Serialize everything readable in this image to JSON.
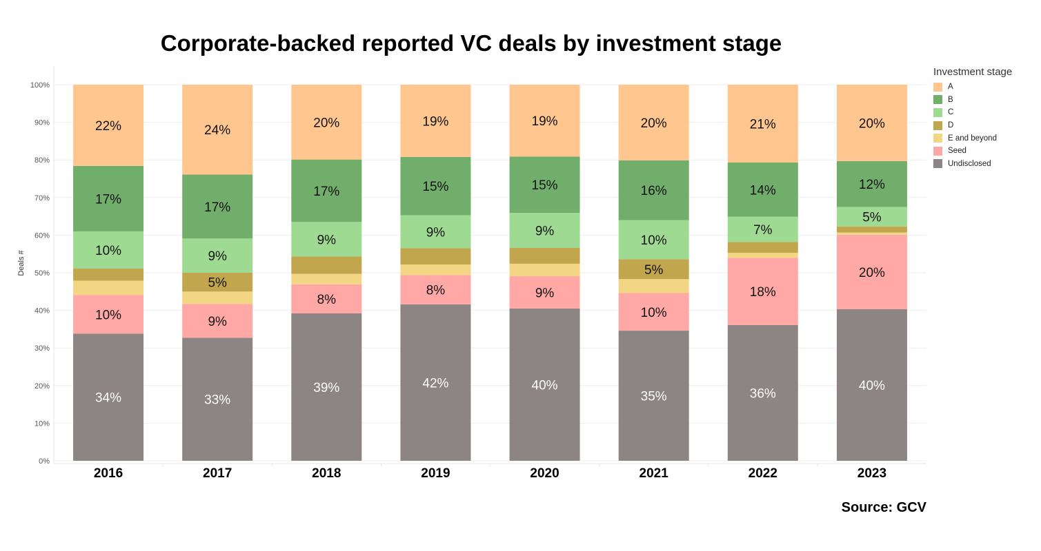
{
  "chart_data": {
    "type": "bar",
    "stacked": true,
    "title": "Corporate-backed reported VC deals by investment stage",
    "ylabel": "Deals #",
    "xlabel": "",
    "ylim": [
      0,
      100
    ],
    "yticks": [
      "0%",
      "10%",
      "20%",
      "30%",
      "40%",
      "50%",
      "60%",
      "70%",
      "80%",
      "90%",
      "100%"
    ],
    "grid": true,
    "legend_title": "Investment stage",
    "legend_position": "right",
    "categories": [
      "2016",
      "2017",
      "2018",
      "2019",
      "2020",
      "2021",
      "2022",
      "2023"
    ],
    "series": [
      {
        "name": "Undisclosed",
        "color": "#8c8583",
        "label_color": "#ffffff",
        "values": [
          33.8,
          32.7,
          39.2,
          41.6,
          40.5,
          34.6,
          36.1,
          40.3
        ],
        "labels": [
          "34%",
          "33%",
          "39%",
          "42%",
          "40%",
          "35%",
          "36%",
          "40%"
        ]
      },
      {
        "name": "Seed",
        "color": "#ffa8a6",
        "label_color": "#111111",
        "values": [
          10.3,
          9.0,
          7.7,
          7.8,
          8.6,
          10.0,
          17.9,
          19.8
        ],
        "labels": [
          "10%",
          "9%",
          "8%",
          "8%",
          "9%",
          "10%",
          "18%",
          "20%"
        ]
      },
      {
        "name": "E and beyond",
        "color": "#f2d683",
        "label_color": "#111111",
        "values": [
          3.8,
          3.3,
          2.8,
          2.8,
          3.3,
          3.7,
          1.3,
          0.6
        ],
        "labels": [
          "",
          "",
          "",
          "",
          "",
          "",
          "",
          ""
        ]
      },
      {
        "name": "D",
        "color": "#c2a64e",
        "label_color": "#111111",
        "values": [
          3.2,
          5.0,
          4.6,
          4.3,
          4.2,
          5.3,
          2.9,
          1.6
        ],
        "labels": [
          "",
          "5%",
          "",
          "",
          "",
          "5%",
          "",
          ""
        ]
      },
      {
        "name": "C",
        "color": "#9fda92",
        "label_color": "#111111",
        "values": [
          9.9,
          9.1,
          9.2,
          8.8,
          9.3,
          10.4,
          6.7,
          5.2
        ],
        "labels": [
          "10%",
          "9%",
          "9%",
          "9%",
          "9%",
          "10%",
          "7%",
          "5%"
        ]
      },
      {
        "name": "B",
        "color": "#71ae6b",
        "label_color": "#111111",
        "values": [
          17.4,
          17.0,
          16.6,
          15.5,
          15.0,
          15.9,
          14.4,
          12.2
        ],
        "labels": [
          "17%",
          "17%",
          "17%",
          "15%",
          "15%",
          "16%",
          "14%",
          "12%"
        ]
      },
      {
        "name": "A",
        "color": "#ffc68f",
        "label_color": "#111111",
        "values": [
          21.6,
          23.9,
          19.9,
          19.2,
          19.1,
          20.1,
          20.7,
          20.3
        ],
        "labels": [
          "22%",
          "24%",
          "20%",
          "19%",
          "19%",
          "20%",
          "21%",
          "20%"
        ]
      }
    ],
    "legend_order": [
      "A",
      "B",
      "C",
      "D",
      "E and beyond",
      "Seed",
      "Undisclosed"
    ],
    "source": "Source: GCV"
  }
}
